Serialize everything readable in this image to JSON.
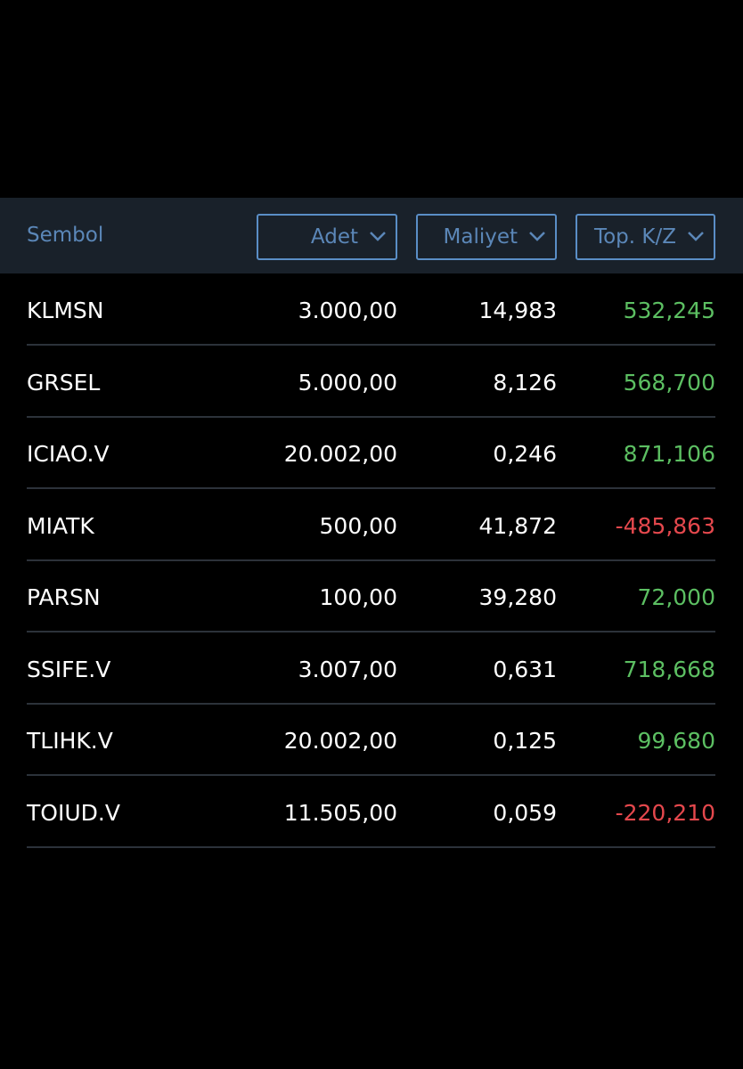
{
  "header": {
    "symbol": "Sembol",
    "columns": [
      "Adet",
      "Maliyet",
      "Top. K/Z"
    ]
  },
  "colors": {
    "gain": "#5cbf62",
    "loss": "#e5484d",
    "text": "#ffffff"
  },
  "table": {
    "rows": [
      [
        "KLMSN",
        "3.000,00",
        "14,983",
        "532,245"
      ],
      [
        "GRSEL",
        "5.000,00",
        "8,126",
        "568,700"
      ],
      [
        "ICIAO.V",
        "20.002,00",
        "0,246",
        "871,106"
      ],
      [
        "MIATK",
        "500,00",
        "41,872",
        "-485,863"
      ],
      [
        "PARSN",
        "100,00",
        "39,280",
        "72,000"
      ],
      [
        "SSIFE.V",
        "3.007,00",
        "0,631",
        "718,668"
      ],
      [
        "TLIHK.V",
        "20.002,00",
        "0,125",
        "99,680"
      ],
      [
        "TOIUD.V",
        "11.505,00",
        "0,059",
        "-220,210"
      ]
    ]
  }
}
